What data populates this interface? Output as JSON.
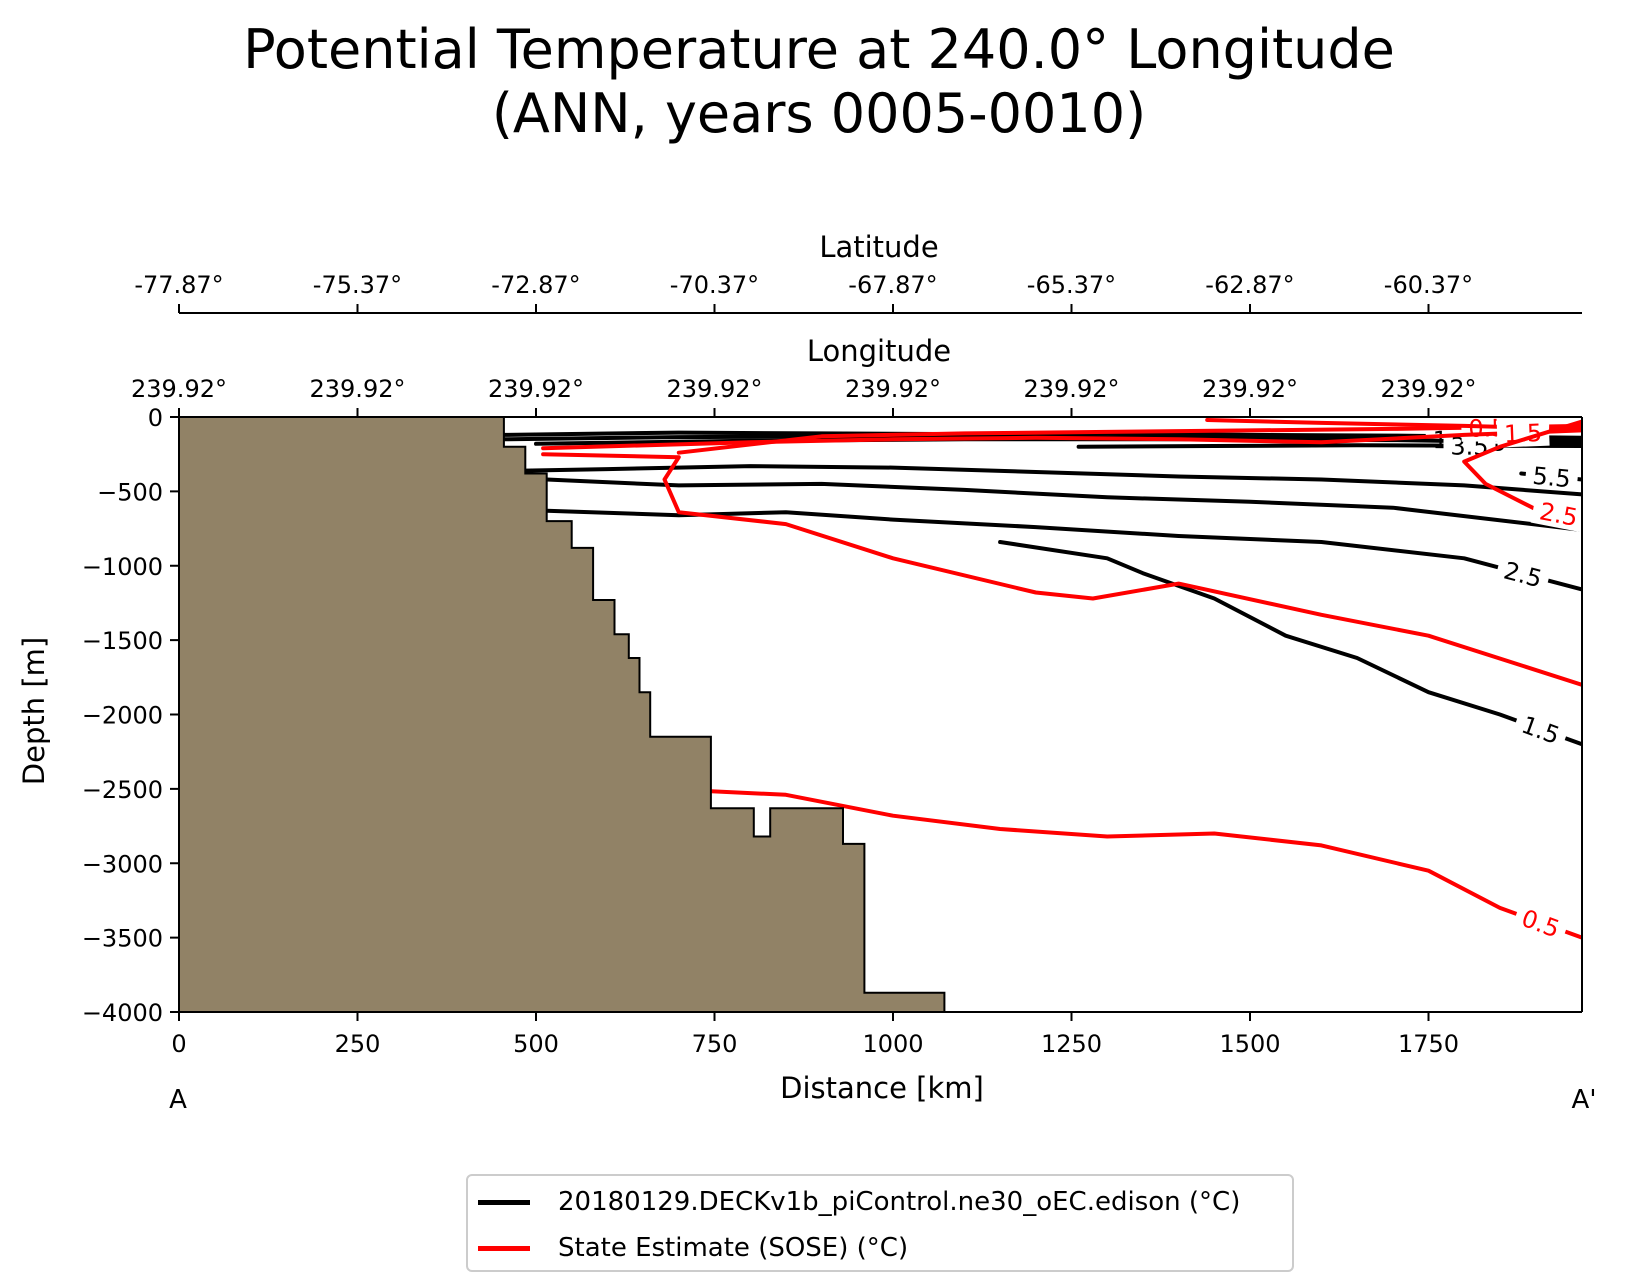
{
  "chart_data": {
    "type": "line",
    "title": "Potential Temperature at 240.0° Longitude",
    "subtitle": "(ANN, years 0005-0010)",
    "xlabel": "Distance [km]",
    "ylabel": "Depth [m]",
    "xlim": [
      0,
      1965
    ],
    "ylim": [
      -4000,
      0
    ],
    "xticks": [
      0,
      250,
      500,
      750,
      1000,
      1250,
      1500,
      1750
    ],
    "yticks": [
      0,
      -500,
      -1000,
      -1500,
      -2000,
      -2500,
      -3000,
      -3500,
      -4000
    ],
    "ytick_labels": [
      "0",
      "−500",
      "−1000",
      "−1500",
      "−2000",
      "−2500",
      "−3000",
      "−3500",
      "−4000"
    ],
    "start_label": "A",
    "end_label": "A'",
    "top_axes": [
      {
        "label": "Latitude",
        "ticks": [
          "-77.87°",
          "-75.37°",
          "-72.87°",
          "-70.37°",
          "-67.87°",
          "-65.37°",
          "-62.87°",
          "-60.37°"
        ]
      },
      {
        "label": "Longitude",
        "ticks": [
          "239.92°",
          "239.92°",
          "239.92°",
          "239.92°",
          "239.92°",
          "239.92°",
          "239.92°",
          "239.92°"
        ]
      }
    ],
    "bathymetry": {
      "color": "#918266",
      "profile": [
        [
          0,
          0
        ],
        [
          455,
          0
        ],
        [
          455,
          -200
        ],
        [
          485,
          -200
        ],
        [
          485,
          -380
        ],
        [
          515,
          -380
        ],
        [
          515,
          -700
        ],
        [
          550,
          -700
        ],
        [
          550,
          -880
        ],
        [
          580,
          -880
        ],
        [
          580,
          -1230
        ],
        [
          610,
          -1230
        ],
        [
          610,
          -1460
        ],
        [
          630,
          -1460
        ],
        [
          630,
          -1620
        ],
        [
          645,
          -1620
        ],
        [
          645,
          -1850
        ],
        [
          660,
          -1850
        ],
        [
          660,
          -2150
        ],
        [
          745,
          -2150
        ],
        [
          745,
          -2630
        ],
        [
          805,
          -2630
        ],
        [
          805,
          -2820
        ],
        [
          828,
          -2820
        ],
        [
          828,
          -2630
        ],
        [
          930,
          -2630
        ],
        [
          930,
          -2870
        ],
        [
          960,
          -2870
        ],
        [
          960,
          -3870
        ],
        [
          1072,
          -3870
        ],
        [
          1072,
          -4000
        ],
        [
          0,
          -4000
        ]
      ]
    },
    "series": [
      {
        "name": "20180129.DECKv1b_piControl.ne30_oEC.edison (°C)",
        "color": "#000000",
        "contours": [
          {
            "level": "0.5",
            "points": [
              [
                455,
                -120
              ],
              [
                700,
                -105
              ],
              [
                900,
                -110
              ],
              [
                1100,
                -115
              ],
              [
                1300,
                -110
              ],
              [
                1500,
                -120
              ],
              [
                1700,
                -125
              ],
              [
                1965,
                -140
              ]
            ]
          },
          {
            "level": "1.5",
            "points": [
              [
                455,
                -150
              ],
              [
                700,
                -135
              ],
              [
                1000,
                -130
              ],
              [
                1300,
                -135
              ],
              [
                1600,
                -140
              ],
              [
                1965,
                -160
              ]
            ]
          },
          {
            "level": "2.5",
            "points": [
              [
                500,
                -180
              ],
              [
                800,
                -160
              ],
              [
                1100,
                -150
              ],
              [
                1400,
                -150
              ],
              [
                1700,
                -155
              ],
              [
                1965,
                -175
              ]
            ]
          },
          {
            "level": "3.5",
            "points": [
              [
                1260,
                -200
              ],
              [
                1450,
                -195
              ],
              [
                1650,
                -190
              ],
              [
                1965,
                -195
              ]
            ]
          },
          {
            "level": "5.5",
            "points": [
              [
                1880,
                -380
              ],
              [
                1965,
                -420
              ]
            ]
          },
          {
            "level": "",
            "points": [
              [
                485,
                -360
              ],
              [
                600,
                -350
              ],
              [
                800,
                -330
              ],
              [
                1000,
                -340
              ],
              [
                1200,
                -370
              ],
              [
                1400,
                -400
              ],
              [
                1600,
                -420
              ],
              [
                1800,
                -460
              ],
              [
                1965,
                -520
              ]
            ]
          },
          {
            "level": "",
            "points": [
              [
                515,
                -420
              ],
              [
                700,
                -460
              ],
              [
                900,
                -450
              ],
              [
                1100,
                -490
              ],
              [
                1300,
                -540
              ],
              [
                1500,
                -570
              ],
              [
                1700,
                -610
              ],
              [
                1965,
                -760
              ]
            ]
          },
          {
            "level": "2.5",
            "points": [
              [
                515,
                -630
              ],
              [
                700,
                -660
              ],
              [
                850,
                -640
              ],
              [
                1000,
                -690
              ],
              [
                1200,
                -740
              ],
              [
                1400,
                -800
              ],
              [
                1600,
                -840
              ],
              [
                1800,
                -950
              ],
              [
                1965,
                -1160
              ]
            ]
          },
          {
            "level": "1.5",
            "points": [
              [
                1150,
                -840
              ],
              [
                1300,
                -950
              ],
              [
                1350,
                -1050
              ],
              [
                1450,
                -1220
              ],
              [
                1550,
                -1470
              ],
              [
                1650,
                -1620
              ],
              [
                1750,
                -1850
              ],
              [
                1850,
                -2000
              ],
              [
                1965,
                -2200
              ]
            ]
          }
        ]
      },
      {
        "name": "State Estimate (SOSE) (°C)",
        "color": "#ff0000",
        "contours": [
          {
            "level": "0.5",
            "points": [
              [
                700,
                -240
              ],
              [
                900,
                -130
              ],
              [
                1100,
                -110
              ],
              [
                1300,
                -100
              ],
              [
                1500,
                -90
              ],
              [
                1700,
                -80
              ],
              [
                1965,
                -60
              ]
            ]
          },
          {
            "level": "1.5",
            "points": [
              [
                1440,
                -20
              ],
              [
                1600,
                -40
              ],
              [
                1800,
                -60
              ],
              [
                1965,
                -80
              ]
            ]
          },
          {
            "level": "1.5",
            "points": [
              [
                510,
                -210
              ],
              [
                800,
                -170
              ],
              [
                1000,
                -150
              ],
              [
                1200,
                -140
              ],
              [
                1400,
                -150
              ],
              [
                1600,
                -170
              ],
              [
                1800,
                -120
              ],
              [
                1965,
                -90
              ]
            ]
          },
          {
            "level": "2.5",
            "points": [
              [
                1965,
                -30
              ],
              [
                1850,
                -200
              ],
              [
                1800,
                -300
              ],
              [
                1830,
                -450
              ],
              [
                1900,
                -620
              ],
              [
                1965,
                -680
              ]
            ]
          },
          {
            "level": "",
            "points": [
              [
                510,
                -250
              ],
              [
                700,
                -270
              ],
              [
                680,
                -420
              ],
              [
                700,
                -640
              ],
              [
                850,
                -720
              ],
              [
                1000,
                -950
              ],
              [
                1200,
                -1180
              ],
              [
                1280,
                -1220
              ],
              [
                1400,
                -1120
              ],
              [
                1600,
                -1330
              ],
              [
                1750,
                -1470
              ],
              [
                1965,
                -1800
              ]
            ]
          },
          {
            "level": "0.5",
            "points": [
              [
                720,
                -2510
              ],
              [
                850,
                -2540
              ],
              [
                1000,
                -2680
              ],
              [
                1150,
                -2770
              ],
              [
                1300,
                -2820
              ],
              [
                1450,
                -2800
              ],
              [
                1600,
                -2880
              ],
              [
                1750,
                -3050
              ],
              [
                1850,
                -3300
              ],
              [
                1965,
                -3500
              ]
            ]
          }
        ]
      }
    ]
  }
}
